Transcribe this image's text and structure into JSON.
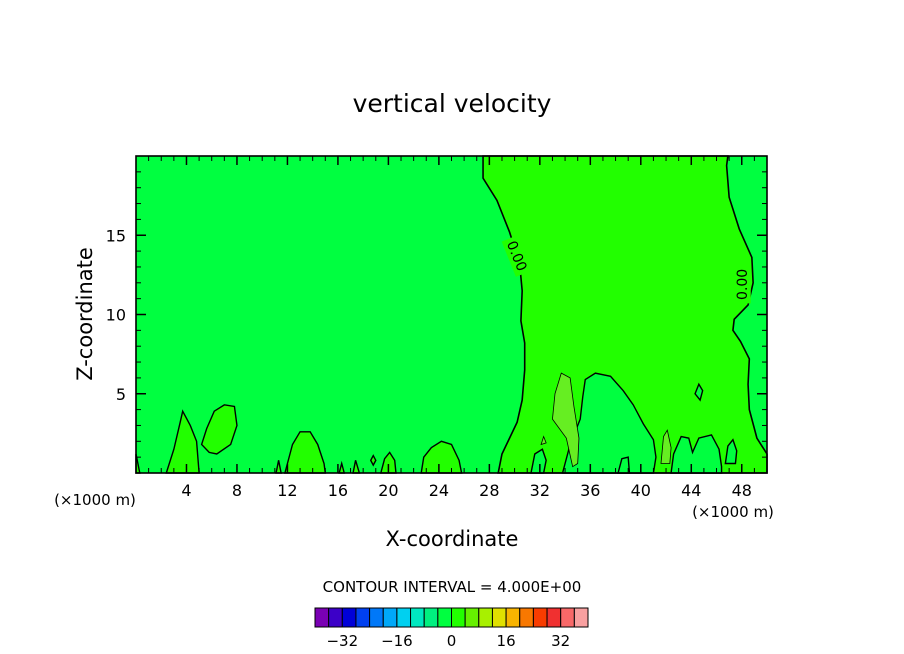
{
  "chart_data": {
    "type": "heatmap",
    "title": "vertical velocity",
    "xlabel": "X-coordinate",
    "ylabel": "Z-coordinate",
    "x_unit_left": "(×1000 m)",
    "x_unit_right": "(×1000 m)",
    "xlim": [
      0,
      50
    ],
    "ylim": [
      0,
      20
    ],
    "x_ticks": [
      4,
      8,
      12,
      16,
      20,
      24,
      28,
      32,
      36,
      40,
      44,
      48
    ],
    "y_ticks": [
      5,
      10,
      15
    ],
    "contour_labels": [
      {
        "text": "0.00",
        "x": 30.2,
        "y": 13.7
      },
      {
        "text": "0.00",
        "x": 48.0,
        "y": 11.9
      }
    ],
    "contour_interval_text": "CONTOUR INTERVAL = 4.000E+00",
    "colorbar": {
      "levels": [
        -36,
        -32,
        -28,
        -24,
        -20,
        -16,
        -12,
        -8,
        -4,
        0,
        4,
        8,
        12,
        16,
        20,
        24,
        28,
        32,
        36
      ],
      "tick_values": [
        -32,
        -16,
        0,
        16,
        32
      ],
      "tick_labels": [
        "−32",
        "−16",
        "0",
        "16",
        "32"
      ],
      "colors": [
        "#7a00b4",
        "#3c00c8",
        "#0000d8",
        "#0040f0",
        "#0078f8",
        "#00a8f8",
        "#00d0f0",
        "#00e8c0",
        "#00f080",
        "#00ff40",
        "#22ff00",
        "#66f000",
        "#a8f000",
        "#e0e000",
        "#f8b400",
        "#f87800",
        "#f83c00",
        "#f03030",
        "#f86868",
        "#f8a0a0"
      ]
    },
    "fill_colors": {
      "base": "#00ff40",
      "positive": "#22ff00",
      "higher": "#66ee22"
    }
  }
}
